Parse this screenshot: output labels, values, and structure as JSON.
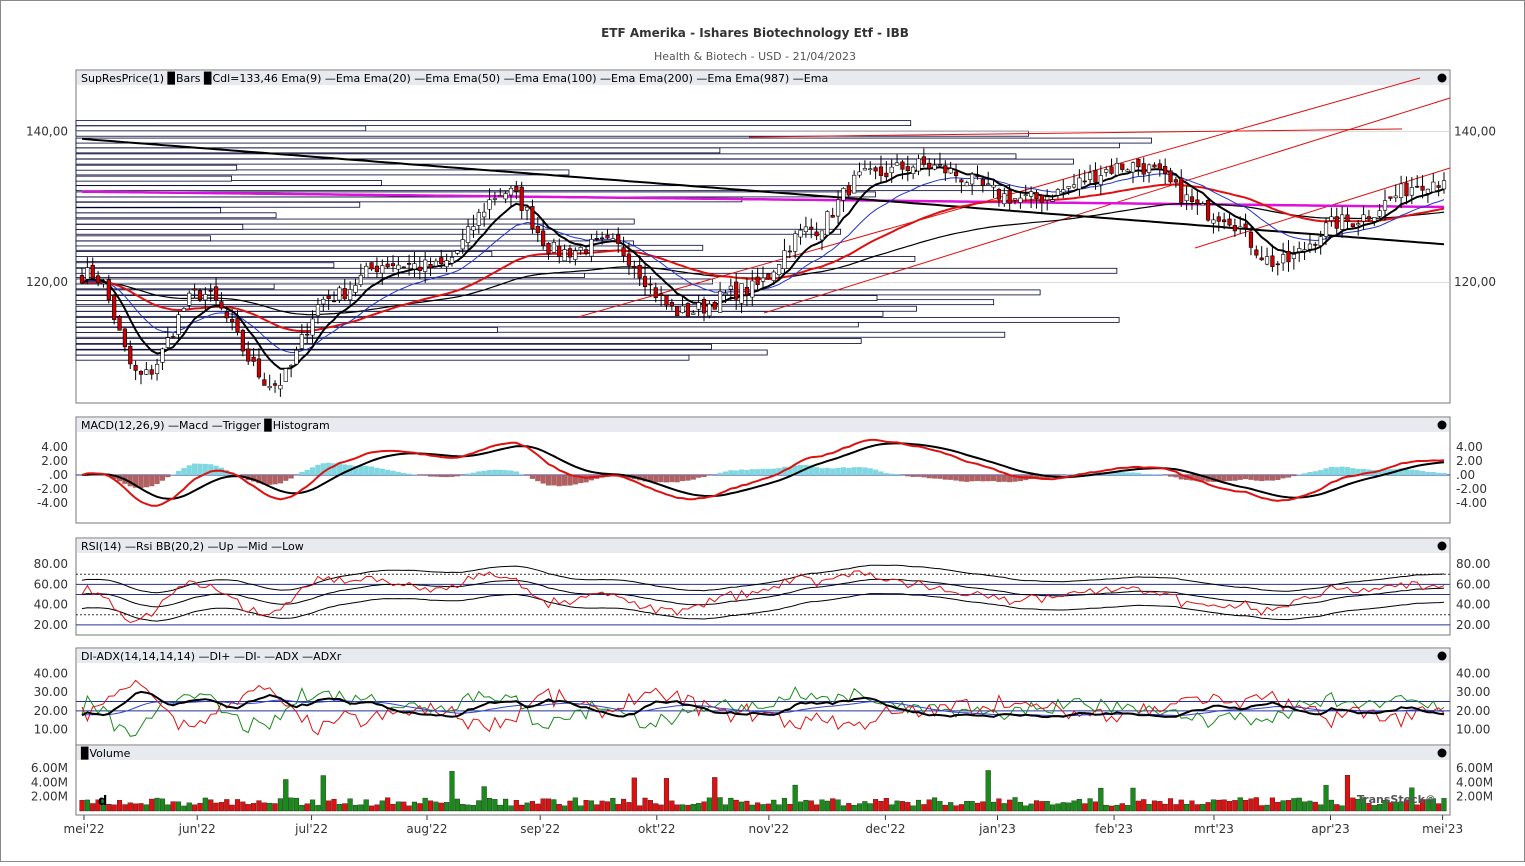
{
  "header": {
    "title": "ETF Amerika - Ishares Biotechnology Etf - IBB",
    "subtitle": "Health & Biotech - USD - 21/04/2023"
  },
  "watermark": "TransStock©",
  "date_marker": "d",
  "colors": {
    "up": "#1a8a1a",
    "down": "#dd1111",
    "ema9": "#000000",
    "ema20": "#2233cc",
    "ema50": "#dd1111",
    "ema100": "#000000",
    "ema200": "#000000",
    "ema987": "#dd11dd",
    "histogram": "#7fd8e0",
    "histogram_neg": "#b06060",
    "frame": "#777777",
    "legend_bg": "#e8eaf0"
  },
  "xaxis": {
    "labels": [
      "mei'22",
      "jun'22",
      "jul'22",
      "aug'22",
      "sep'22",
      "okt'22",
      "nov'22",
      "dec'22",
      "jan'23",
      "feb'23",
      "mrt'23",
      "apr'23",
      "mei'23"
    ]
  },
  "panels": [
    {
      "id": "price",
      "legend": "SupResPrice(1) ▉Bars ▉Cdl=133,46 Ema(9) —Ema Ema(20) —Ema Ema(50) —Ema Ema(100) —Ema Ema(200) —Ema Ema(987) —Ema",
      "ticks": [
        "140,00",
        "120,00"
      ]
    },
    {
      "id": "macd",
      "legend": "MACD(12,26,9) —Macd —Trigger ▉Histogram",
      "ticks": [
        "4.00",
        "2.00",
        ".00",
        "-2.00",
        "-4.00"
      ]
    },
    {
      "id": "rsi",
      "legend": "RSI(14) —Rsi BB(20,2) —Up —Mid —Low",
      "ticks": [
        "80.00",
        "60.00",
        "40.00",
        "20.00"
      ]
    },
    {
      "id": "adx",
      "legend": "DI-ADX(14,14,14,14) —DI+ —DI- —ADX —ADXr",
      "ticks": [
        "40.00",
        "30.00",
        "20.00",
        "10.00"
      ]
    },
    {
      "id": "volume",
      "legend": "▉Volume",
      "ticks": [
        "6.00M",
        "4.00M",
        "2.00M"
      ]
    }
  ],
  "chart_data": [
    {
      "type": "candlestick",
      "panel": "price",
      "ylim": [
        104,
        146
      ],
      "ema_labels": [
        "Ema(9)",
        "Ema(20)",
        "Ema(50)",
        "Ema(100)",
        "Ema(200)",
        "Ema(987)"
      ],
      "last_close": 133.46,
      "close_anchors": [
        {
          "x": "mei'22",
          "y": 121.0
        },
        {
          "x": "mei'22 +10d",
          "y": 107.5
        },
        {
          "x": "jun'22",
          "y": 118.5
        },
        {
          "x": "jun'22 +15d",
          "y": 106.5
        },
        {
          "x": "jul'22",
          "y": 118.0
        },
        {
          "x": "jul'22 +15d",
          "y": 122.5
        },
        {
          "x": "aug'22",
          "y": 122.0
        },
        {
          "x": "aug'22 +15d",
          "y": 132.0
        },
        {
          "x": "sep'22",
          "y": 124.0
        },
        {
          "x": "sep'22 +10d",
          "y": 125.0
        },
        {
          "x": "okt'22",
          "y": 116.0
        },
        {
          "x": "okt'22 +15d",
          "y": 119.0
        },
        {
          "x": "nov'22",
          "y": 127.0
        },
        {
          "x": "nov'22 +15d",
          "y": 134.0
        },
        {
          "x": "dec'22",
          "y": 135.5
        },
        {
          "x": "jan'23",
          "y": 131.0
        },
        {
          "x": "feb'23",
          "y": 135.5
        },
        {
          "x": "mrt'23",
          "y": 129.0
        },
        {
          "x": "mrt'23 +15d",
          "y": 122.5
        },
        {
          "x": "apr'23",
          "y": 128.0
        },
        {
          "x": "apr'23 +15d",
          "y": 133.46
        }
      ]
    },
    {
      "type": "line",
      "panel": "macd",
      "ylim": [
        -6,
        6
      ],
      "series": [
        {
          "name": "Macd"
        },
        {
          "name": "Trigger"
        },
        {
          "name": "Histogram"
        }
      ]
    },
    {
      "type": "line",
      "panel": "rsi",
      "ylim": [
        10,
        90
      ],
      "series": [
        {
          "name": "Rsi"
        },
        {
          "name": "Up"
        },
        {
          "name": "Mid"
        },
        {
          "name": "Low"
        }
      ]
    },
    {
      "type": "line",
      "panel": "adx",
      "ylim": [
        5,
        45
      ],
      "series": [
        {
          "name": "DI+"
        },
        {
          "name": "DI-"
        },
        {
          "name": "ADX"
        },
        {
          "name": "ADXr"
        }
      ]
    },
    {
      "type": "bar",
      "panel": "volume",
      "ylim": [
        0,
        7000000
      ]
    }
  ]
}
